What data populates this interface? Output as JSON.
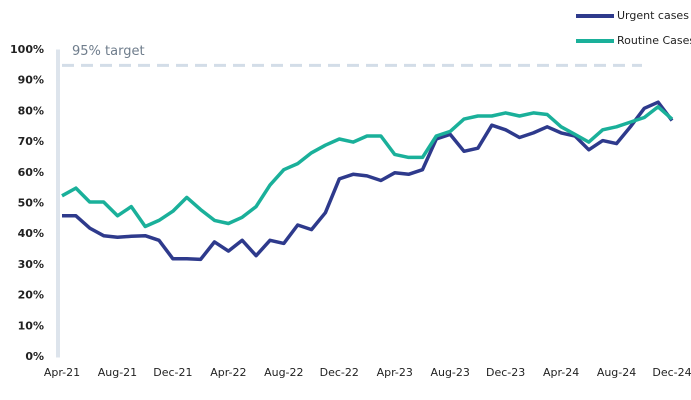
{
  "chart_data": {
    "type": "line",
    "categories": [
      "Apr-21",
      null,
      null,
      null,
      "Aug-21",
      null,
      null,
      null,
      "Dec-21",
      null,
      null,
      null,
      "Apr-22",
      null,
      null,
      null,
      "Aug-22",
      null,
      null,
      null,
      "Dec-22",
      null,
      null,
      null,
      "Apr-23",
      null,
      null,
      null,
      "Aug-23",
      null,
      null,
      null,
      "Dec-23",
      null,
      null,
      null,
      "Apr-24",
      null,
      null,
      null,
      "Aug-24",
      null,
      null,
      null,
      "Dec-24"
    ],
    "series": [
      {
        "name": "Urgent cases",
        "color": "#2e3a8c",
        "values": [
          46,
          46,
          42,
          39.5,
          39,
          39.3,
          39.5,
          38,
          32,
          32,
          31.8,
          37.5,
          34.5,
          38,
          33,
          38,
          37,
          43,
          41.5,
          47,
          58,
          59.5,
          59,
          57.5,
          60,
          59.5,
          61,
          71,
          72.5,
          67,
          68,
          75.5,
          74,
          71.5,
          73,
          75,
          73,
          72,
          67.5,
          70.5,
          69.5,
          75,
          81,
          83,
          77
        ]
      },
      {
        "name": "Routine Cases",
        "color": "#1ab09a",
        "values": [
          52.5,
          55,
          50.5,
          50.5,
          46,
          49,
          42.5,
          44.5,
          47.5,
          52,
          48,
          44.5,
          43.5,
          45.5,
          49,
          56,
          61,
          63,
          66.5,
          69,
          71,
          70,
          72,
          72,
          66,
          65,
          65,
          72,
          73.5,
          77.5,
          78.5,
          78.5,
          79.5,
          78.5,
          79.5,
          79,
          75,
          72.5,
          70,
          74,
          75,
          76.5,
          78,
          81.5,
          77.5
        ]
      }
    ],
    "target": {
      "value": 95,
      "label": "95% target"
    },
    "ylim": [
      0,
      100
    ],
    "yticks": [
      {
        "value": 0,
        "label": "0%"
      },
      {
        "value": 10,
        "label": "10%"
      },
      {
        "value": 20,
        "label": "20%"
      },
      {
        "value": 30,
        "label": "30%"
      },
      {
        "value": 40,
        "label": "40%"
      },
      {
        "value": 50,
        "label": "50%"
      },
      {
        "value": 60,
        "label": "60%"
      },
      {
        "value": 70,
        "label": "70%"
      },
      {
        "value": 80,
        "label": "80%"
      },
      {
        "value": 90,
        "label": "90%"
      },
      {
        "value": 100,
        "label": "100%"
      }
    ],
    "grid": false,
    "legend": "top-right"
  }
}
